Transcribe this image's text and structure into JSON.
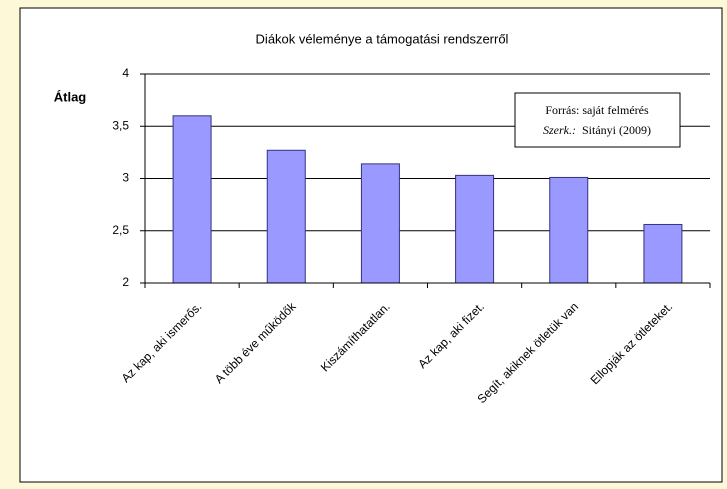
{
  "chart_data": {
    "type": "bar",
    "title": "Diákok véleménye a támogatási rendszerről",
    "y_label": "Átlag",
    "annotation": {
      "source": "Forrás: saját felmérés",
      "editor_label": "Szerk.:",
      "editor": "Sitányi (2009)"
    },
    "categories": [
      "Az kap, aki ismerős.",
      "A több éve működők",
      "Kiszámíthatatlan.",
      "Az kap, aki fizet.",
      "Segít, akiknek ötletük van",
      "Ellopják az ötleteket."
    ],
    "values": [
      3.6,
      3.27,
      3.14,
      3.03,
      3.01,
      2.56
    ],
    "color": "#9999ff",
    "ylim": [
      2,
      4
    ],
    "yticks": [
      2,
      {
        "value": 2.5,
        "label": "2,5"
      },
      3,
      {
        "value": 3.5,
        "label": "3,5"
      },
      4
    ],
    "grid": true
  }
}
